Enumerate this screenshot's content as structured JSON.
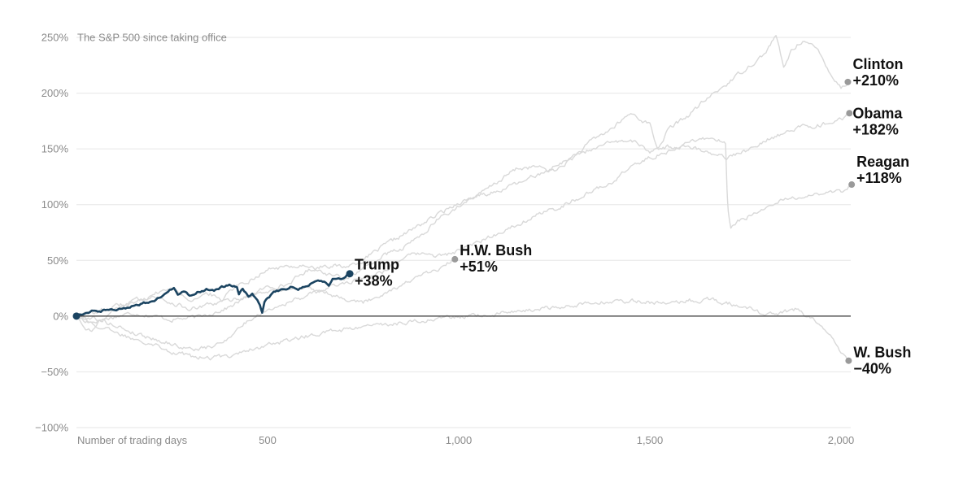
{
  "chart_data": {
    "type": "line",
    "title": "The S&P 500 since taking office",
    "xlabel": "Number of trading days",
    "ylabel": "",
    "xlim": [
      0,
      2020
    ],
    "ylim": [
      -100,
      250
    ],
    "x_ticks": [
      {
        "value": 500,
        "label": "500"
      },
      {
        "value": 1000,
        "label": "1,000"
      },
      {
        "value": 1500,
        "label": "1,500"
      },
      {
        "value": 2000,
        "label": "2,000"
      }
    ],
    "y_ticks": [
      {
        "value": 250,
        "label": "250%"
      },
      {
        "value": 200,
        "label": "200%"
      },
      {
        "value": 150,
        "label": "150%"
      },
      {
        "value": 100,
        "label": "100%"
      },
      {
        "value": 50,
        "label": "50%"
      },
      {
        "value": 0,
        "label": "0%"
      },
      {
        "value": -50,
        "label": "−50%"
      },
      {
        "value": -100,
        "label": "−100%"
      }
    ],
    "colors": {
      "highlight": "#1b4461",
      "other": "#d9d9d9",
      "end_dot": "#9a9a9a",
      "grid": "#e6e6e6",
      "zero_line": "#333333"
    },
    "series": [
      {
        "name": "Clinton",
        "value_label": "+210%",
        "highlight": false,
        "points": [
          [
            0,
            0
          ],
          [
            40,
            -5
          ],
          [
            80,
            -2
          ],
          [
            150,
            3
          ],
          [
            250,
            -3
          ],
          [
            320,
            -1
          ],
          [
            400,
            8
          ],
          [
            450,
            18
          ],
          [
            500,
            26
          ],
          [
            550,
            28
          ],
          [
            600,
            40
          ],
          [
            650,
            46
          ],
          [
            700,
            44
          ],
          [
            750,
            50
          ],
          [
            800,
            62
          ],
          [
            850,
            72
          ],
          [
            900,
            82
          ],
          [
            950,
            92
          ],
          [
            1000,
            102
          ],
          [
            1050,
            108
          ],
          [
            1100,
            120
          ],
          [
            1150,
            132
          ],
          [
            1200,
            134
          ],
          [
            1250,
            130
          ],
          [
            1300,
            142
          ],
          [
            1350,
            158
          ],
          [
            1400,
            168
          ],
          [
            1450,
            182
          ],
          [
            1500,
            172
          ],
          [
            1520,
            150
          ],
          [
            1550,
            168
          ],
          [
            1600,
            180
          ],
          [
            1650,
            195
          ],
          [
            1700,
            208
          ],
          [
            1750,
            222
          ],
          [
            1800,
            235
          ],
          [
            1830,
            252
          ],
          [
            1850,
            222
          ],
          [
            1870,
            238
          ],
          [
            1900,
            248
          ],
          [
            1940,
            238
          ],
          [
            1960,
            226
          ],
          [
            1980,
            214
          ],
          [
            2000,
            205
          ],
          [
            2018,
            210
          ]
        ]
      },
      {
        "name": "Obama",
        "value_label": "+182%",
        "highlight": false,
        "points": [
          [
            0,
            0
          ],
          [
            20,
            -10
          ],
          [
            40,
            -14
          ],
          [
            60,
            -6
          ],
          [
            100,
            6
          ],
          [
            150,
            12
          ],
          [
            200,
            20
          ],
          [
            250,
            25
          ],
          [
            300,
            15
          ],
          [
            350,
            20
          ],
          [
            380,
            14
          ],
          [
            400,
            24
          ],
          [
            450,
            32
          ],
          [
            500,
            42
          ],
          [
            550,
            44
          ],
          [
            600,
            46
          ],
          [
            650,
            38
          ],
          [
            700,
            34
          ],
          [
            750,
            42
          ],
          [
            800,
            54
          ],
          [
            850,
            60
          ],
          [
            900,
            72
          ],
          [
            950,
            88
          ],
          [
            1000,
            98
          ],
          [
            1050,
            108
          ],
          [
            1100,
            112
          ],
          [
            1150,
            118
          ],
          [
            1200,
            126
          ],
          [
            1250,
            134
          ],
          [
            1300,
            144
          ],
          [
            1350,
            150
          ],
          [
            1400,
            155
          ],
          [
            1450,
            158
          ],
          [
            1500,
            148
          ],
          [
            1550,
            152
          ],
          [
            1600,
            152
          ],
          [
            1650,
            148
          ],
          [
            1700,
            142
          ],
          [
            1750,
            148
          ],
          [
            1800,
            158
          ],
          [
            1850,
            164
          ],
          [
            1900,
            170
          ],
          [
            1950,
            172
          ],
          [
            2000,
            176
          ],
          [
            2022,
            182
          ]
        ]
      },
      {
        "name": "Reagan",
        "value_label": "+118%",
        "highlight": false,
        "points": [
          [
            0,
            0
          ],
          [
            50,
            -2
          ],
          [
            100,
            -8
          ],
          [
            150,
            -15
          ],
          [
            200,
            -20
          ],
          [
            250,
            -25
          ],
          [
            300,
            -30
          ],
          [
            350,
            -28
          ],
          [
            380,
            -24
          ],
          [
            420,
            -12
          ],
          [
            450,
            -4
          ],
          [
            500,
            6
          ],
          [
            550,
            12
          ],
          [
            600,
            18
          ],
          [
            650,
            24
          ],
          [
            700,
            30
          ],
          [
            750,
            34
          ],
          [
            800,
            40
          ],
          [
            850,
            52
          ],
          [
            900,
            56
          ],
          [
            950,
            54
          ],
          [
            1000,
            58
          ],
          [
            1050,
            66
          ],
          [
            1100,
            74
          ],
          [
            1150,
            82
          ],
          [
            1200,
            90
          ],
          [
            1250,
            96
          ],
          [
            1300,
            104
          ],
          [
            1350,
            112
          ],
          [
            1400,
            120
          ],
          [
            1450,
            134
          ],
          [
            1500,
            142
          ],
          [
            1550,
            148
          ],
          [
            1600,
            156
          ],
          [
            1650,
            160
          ],
          [
            1680,
            158
          ],
          [
            1698,
            154
          ],
          [
            1702,
            112
          ],
          [
            1705,
            92
          ],
          [
            1712,
            78
          ],
          [
            1730,
            84
          ],
          [
            1760,
            90
          ],
          [
            1800,
            96
          ],
          [
            1850,
            104
          ],
          [
            1900,
            108
          ],
          [
            1950,
            110
          ],
          [
            2000,
            112
          ],
          [
            2028,
            118
          ]
        ]
      },
      {
        "name": "H.W. Bush",
        "value_label": "+51%",
        "highlight": false,
        "points": [
          [
            0,
            0
          ],
          [
            50,
            4
          ],
          [
            100,
            8
          ],
          [
            150,
            14
          ],
          [
            200,
            18
          ],
          [
            250,
            12
          ],
          [
            300,
            6
          ],
          [
            350,
            10
          ],
          [
            400,
            14
          ],
          [
            450,
            18
          ],
          [
            500,
            22
          ],
          [
            550,
            24
          ],
          [
            600,
            26
          ],
          [
            650,
            22
          ],
          [
            700,
            16
          ],
          [
            750,
            12
          ],
          [
            800,
            20
          ],
          [
            850,
            28
          ],
          [
            900,
            36
          ],
          [
            950,
            42
          ],
          [
            990,
            51
          ]
        ]
      },
      {
        "name": "W. Bush",
        "value_label": "−40%",
        "highlight": false,
        "points": [
          [
            0,
            0
          ],
          [
            50,
            -8
          ],
          [
            100,
            -15
          ],
          [
            150,
            -20
          ],
          [
            200,
            -24
          ],
          [
            250,
            -32
          ],
          [
            300,
            -36
          ],
          [
            350,
            -38
          ],
          [
            400,
            -35
          ],
          [
            450,
            -30
          ],
          [
            500,
            -26
          ],
          [
            550,
            -22
          ],
          [
            600,
            -18
          ],
          [
            650,
            -15
          ],
          [
            700,
            -12
          ],
          [
            750,
            -10
          ],
          [
            800,
            -8
          ],
          [
            850,
            -6
          ],
          [
            900,
            -4
          ],
          [
            950,
            -2
          ],
          [
            1000,
            -1
          ],
          [
            1050,
            0
          ],
          [
            1100,
            2
          ],
          [
            1150,
            4
          ],
          [
            1200,
            6
          ],
          [
            1250,
            8
          ],
          [
            1300,
            10
          ],
          [
            1350,
            12
          ],
          [
            1400,
            13
          ],
          [
            1450,
            14
          ],
          [
            1500,
            12
          ],
          [
            1550,
            12
          ],
          [
            1600,
            14
          ],
          [
            1650,
            15
          ],
          [
            1700,
            12
          ],
          [
            1750,
            8
          ],
          [
            1800,
            2
          ],
          [
            1850,
            4
          ],
          [
            1880,
            6
          ],
          [
            1900,
            2
          ],
          [
            1950,
            -8
          ],
          [
            1980,
            -22
          ],
          [
            2000,
            -34
          ],
          [
            2020,
            -40
          ]
        ]
      },
      {
        "name": "Trump",
        "value_label": "+38%",
        "highlight": true,
        "points": [
          [
            0,
            0
          ],
          [
            20,
            3
          ],
          [
            40,
            5
          ],
          [
            60,
            4
          ],
          [
            80,
            6
          ],
          [
            100,
            6
          ],
          [
            120,
            7
          ],
          [
            140,
            8
          ],
          [
            160,
            10
          ],
          [
            180,
            12
          ],
          [
            200,
            14
          ],
          [
            220,
            17
          ],
          [
            240,
            22
          ],
          [
            255,
            26
          ],
          [
            265,
            20
          ],
          [
            280,
            22
          ],
          [
            300,
            18
          ],
          [
            320,
            22
          ],
          [
            340,
            24
          ],
          [
            360,
            22
          ],
          [
            380,
            26
          ],
          [
            400,
            28
          ],
          [
            420,
            26
          ],
          [
            425,
            20
          ],
          [
            435,
            24
          ],
          [
            450,
            18
          ],
          [
            460,
            20
          ],
          [
            470,
            16
          ],
          [
            480,
            10
          ],
          [
            486,
            4
          ],
          [
            492,
            12
          ],
          [
            500,
            16
          ],
          [
            520,
            22
          ],
          [
            540,
            24
          ],
          [
            560,
            26
          ],
          [
            580,
            24
          ],
          [
            600,
            27
          ],
          [
            620,
            30
          ],
          [
            640,
            32
          ],
          [
            660,
            28
          ],
          [
            670,
            34
          ],
          [
            690,
            33
          ],
          [
            700,
            35
          ],
          [
            715,
            38
          ]
        ]
      }
    ]
  }
}
